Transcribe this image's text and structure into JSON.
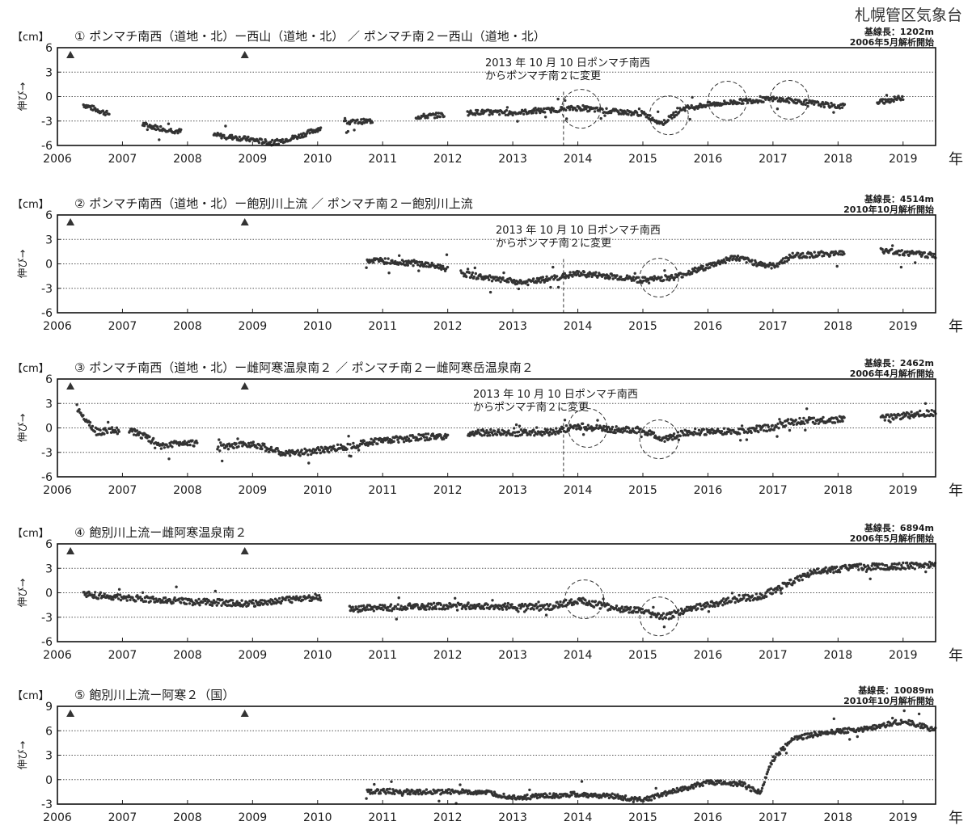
{
  "agency": "札幌管区気象台",
  "year_unit": "年",
  "y_unit": "【cm】",
  "y_axis_label": "伸び→",
  "chart_data": [
    {
      "type": "scatter",
      "title": "① ポンマチ南西（道地・北）ー西山（道地・北） ／ ポンマチ南２ー西山（道地・北）",
      "baseline_length": "基線長：1202m",
      "analysis_start": "2006年5月解析開始",
      "annotation": [
        "2013 年 10 月 10 日ポンマチ南西",
        "からポンマチ南２に変更"
      ],
      "change_date": 2013.78,
      "event_markers": [
        2006.2,
        2008.88
      ],
      "circles": [
        [
          2014.05,
          -1.5
        ],
        [
          2015.4,
          -2.3
        ],
        [
          2016.3,
          -0.5
        ],
        [
          2017.25,
          -0.4
        ]
      ],
      "xlim": [
        2006,
        2019.5
      ],
      "xticks": [
        "2006",
        "2007",
        "2008",
        "2009",
        "2010",
        "2011",
        "2012",
        "2013",
        "2014",
        "2015",
        "2016",
        "2017",
        "2018",
        "2019"
      ],
      "ylim": [
        -6,
        6
      ],
      "yticks": [
        "6",
        "3",
        "0",
        "-3",
        "-6"
      ],
      "grid": "y",
      "trend": [
        [
          2006.4,
          -1.0
        ],
        [
          2006.7,
          -1.9
        ],
        [
          2007.4,
          -3.6
        ],
        [
          2007.8,
          -4.2
        ],
        [
          2008.5,
          -4.8
        ],
        [
          2009.0,
          -5.3
        ],
        [
          2009.3,
          -5.7
        ],
        [
          2009.7,
          -4.9
        ],
        [
          2010.0,
          -4.0
        ],
        [
          2010.4,
          -3.2
        ],
        [
          2010.8,
          -3.0
        ],
        [
          2011.5,
          -2.5
        ],
        [
          2012.0,
          -2.2
        ],
        [
          2012.5,
          -1.9
        ],
        [
          2013.0,
          -2.0
        ],
        [
          2013.5,
          -1.7
        ],
        [
          2014.0,
          -1.4
        ],
        [
          2014.5,
          -1.8
        ],
        [
          2015.0,
          -2.1
        ],
        [
          2015.3,
          -3.3
        ],
        [
          2015.6,
          -1.5
        ],
        [
          2016.0,
          -1.0
        ],
        [
          2016.5,
          -0.6
        ],
        [
          2017.0,
          -0.3
        ],
        [
          2017.5,
          -0.7
        ],
        [
          2018.0,
          -1.2
        ],
        [
          2018.7,
          -0.6
        ],
        [
          2019.0,
          -0.1
        ]
      ],
      "gaps": [
        [
          2006.8,
          2007.3
        ],
        [
          2007.9,
          2008.4
        ],
        [
          2010.05,
          2010.4
        ],
        [
          2010.85,
          2011.5
        ],
        [
          2011.95,
          2012.3
        ],
        [
          2018.1,
          2018.6
        ]
      ],
      "noise": 0.3
    },
    {
      "type": "scatter",
      "title": "② ポンマチ南西（道地・北）ー飽別川上流 ／ ポンマチ南２ー飽別川上流",
      "baseline_length": "基線長：4514m",
      "analysis_start": "2010年10月解析開始",
      "annotation": [
        "2013 年 10 月 10 日ポンマチ南西",
        "からポンマチ南２に変更"
      ],
      "change_date": 2013.78,
      "event_markers": [
        2006.2,
        2008.88
      ],
      "circles": [
        [
          2015.25,
          -1.7
        ]
      ],
      "xlim": [
        2006,
        2019.5
      ],
      "xticks": [
        "2006",
        "2007",
        "2008",
        "2009",
        "2010",
        "2011",
        "2012",
        "2013",
        "2014",
        "2015",
        "2016",
        "2017",
        "2018",
        "2019"
      ],
      "ylim": [
        -6,
        6
      ],
      "yticks": [
        "6",
        "3",
        "0",
        "-3",
        "-6"
      ],
      "grid": "y",
      "trend": [
        [
          2010.75,
          0.5
        ],
        [
          2011.5,
          0.1
        ],
        [
          2011.9,
          -0.4
        ],
        [
          2012.3,
          -1.3
        ],
        [
          2012.8,
          -2.0
        ],
        [
          2013.2,
          -2.3
        ],
        [
          2013.6,
          -1.8
        ],
        [
          2014.0,
          -1.2
        ],
        [
          2014.5,
          -1.5
        ],
        [
          2015.0,
          -2.0
        ],
        [
          2015.5,
          -1.6
        ],
        [
          2016.0,
          -0.3
        ],
        [
          2016.4,
          0.8
        ],
        [
          2016.8,
          0.0
        ],
        [
          2017.0,
          -0.3
        ],
        [
          2017.3,
          1.0
        ],
        [
          2018.0,
          1.3
        ],
        [
          2018.7,
          1.6
        ],
        [
          2019.5,
          1.0
        ]
      ],
      "gaps": [
        [
          2012.0,
          2012.2
        ],
        [
          2018.1,
          2018.65
        ]
      ],
      "noise": 0.35
    },
    {
      "type": "scatter",
      "title": "③ ポンマチ南西（道地・北）ー雌阿寒温泉南２ ／ ポンマチ南２ー雌阿寒岳温泉南２",
      "baseline_length": "基線長：2462m",
      "analysis_start": "2006年4月解析開始",
      "annotation": [
        "2013 年 10 月 10 日ポンマチ南西",
        "からポンマチ南２に変更"
      ],
      "change_date": 2013.78,
      "event_markers": [
        2006.2,
        2008.88
      ],
      "circles": [
        [
          2014.15,
          0.0
        ],
        [
          2015.25,
          -1.4
        ]
      ],
      "xlim": [
        2006,
        2019.5
      ],
      "xticks": [
        "2006",
        "2007",
        "2008",
        "2009",
        "2010",
        "2011",
        "2012",
        "2013",
        "2014",
        "2015",
        "2016",
        "2017",
        "2018",
        "2019"
      ],
      "ylim": [
        -6,
        6
      ],
      "yticks": [
        "6",
        "3",
        "0",
        "-3",
        "-6"
      ],
      "grid": "y",
      "trend": [
        [
          2006.3,
          2.5
        ],
        [
          2006.6,
          -0.5
        ],
        [
          2006.9,
          -0.3
        ],
        [
          2007.2,
          -0.5
        ],
        [
          2007.6,
          -2.2
        ],
        [
          2008.0,
          -1.7
        ],
        [
          2008.5,
          -2.5
        ],
        [
          2009.0,
          -1.9
        ],
        [
          2009.5,
          -3.2
        ],
        [
          2010.0,
          -2.8
        ],
        [
          2010.5,
          -2.2
        ],
        [
          2010.9,
          -1.6
        ],
        [
          2011.5,
          -1.2
        ],
        [
          2012.0,
          -1.0
        ],
        [
          2012.5,
          -0.6
        ],
        [
          2013.0,
          -0.6
        ],
        [
          2013.6,
          -0.5
        ],
        [
          2014.0,
          0.2
        ],
        [
          2014.5,
          -0.2
        ],
        [
          2015.0,
          -0.3
        ],
        [
          2015.3,
          -1.4
        ],
        [
          2015.7,
          -0.5
        ],
        [
          2016.5,
          -0.4
        ],
        [
          2017.0,
          0.1
        ],
        [
          2017.3,
          0.8
        ],
        [
          2018.0,
          1.0
        ],
        [
          2018.8,
          1.3
        ],
        [
          2019.5,
          1.9
        ]
      ],
      "gaps": [
        [
          2006.95,
          2007.1
        ],
        [
          2008.15,
          2008.45
        ],
        [
          2012.0,
          2012.3
        ],
        [
          2018.1,
          2018.65
        ]
      ],
      "noise": 0.4
    },
    {
      "type": "scatter",
      "title": "④ 飽別川上流ー雌阿寒温泉南２",
      "baseline_length": "基線長：6894m",
      "analysis_start": "2006年5月解析開始",
      "annotation": [],
      "change_date": null,
      "event_markers": [
        2006.2,
        2008.88
      ],
      "circles": [
        [
          2014.1,
          -0.8
        ],
        [
          2015.25,
          -2.9
        ]
      ],
      "xlim": [
        2006,
        2019.5
      ],
      "xticks": [
        "2006",
        "2007",
        "2008",
        "2009",
        "2010",
        "2011",
        "2012",
        "2013",
        "2014",
        "2015",
        "2016",
        "2017",
        "2018",
        "2019"
      ],
      "ylim": [
        -6,
        6
      ],
      "yticks": [
        "6",
        "3",
        "0",
        "-3",
        "-6"
      ],
      "grid": "y",
      "trend": [
        [
          2006.4,
          -0.2
        ],
        [
          2007.0,
          -0.6
        ],
        [
          2008.0,
          -1.1
        ],
        [
          2009.0,
          -1.3
        ],
        [
          2010.0,
          -0.5
        ],
        [
          2010.5,
          -2.0
        ],
        [
          2011.5,
          -1.7
        ],
        [
          2012.5,
          -1.6
        ],
        [
          2013.5,
          -1.8
        ],
        [
          2014.0,
          -1.0
        ],
        [
          2014.5,
          -1.8
        ],
        [
          2015.0,
          -2.3
        ],
        [
          2015.3,
          -3.1
        ],
        [
          2015.8,
          -1.8
        ],
        [
          2016.5,
          -0.7
        ],
        [
          2016.8,
          -0.5
        ],
        [
          2017.2,
          1.0
        ],
        [
          2017.6,
          2.5
        ],
        [
          2018.2,
          3.1
        ],
        [
          2019.5,
          3.4
        ]
      ],
      "gaps": [
        [
          2010.05,
          2010.48
        ]
      ],
      "noise": 0.4
    },
    {
      "type": "scatter",
      "title": "⑤ 飽別川上流ー阿寒２（国）",
      "baseline_length": "基線長：10089m",
      "analysis_start": "2010年10月解析開始",
      "annotation": [],
      "change_date": null,
      "event_markers": [
        2006.2,
        2008.88
      ],
      "circles": [],
      "xlim": [
        2006,
        2019.5
      ],
      "xticks": [
        "2006",
        "2007",
        "2008",
        "2009",
        "2010",
        "2011",
        "2012",
        "2013",
        "2014",
        "2015",
        "2016",
        "2017",
        "2018",
        "2019"
      ],
      "ylim": [
        -3,
        9
      ],
      "yticks": [
        "9",
        "6",
        "3",
        "0",
        "-3"
      ],
      "grid": "y",
      "trend": [
        [
          2010.75,
          -1.4
        ],
        [
          2011.5,
          -1.5
        ],
        [
          2012.5,
          -1.5
        ],
        [
          2013.0,
          -2.2
        ],
        [
          2013.5,
          -2.0
        ],
        [
          2014.0,
          -1.8
        ],
        [
          2014.5,
          -2.0
        ],
        [
          2015.0,
          -2.5
        ],
        [
          2015.5,
          -1.4
        ],
        [
          2016.0,
          -0.3
        ],
        [
          2016.5,
          -0.5
        ],
        [
          2016.8,
          -1.6
        ],
        [
          2017.0,
          2.5
        ],
        [
          2017.3,
          5.0
        ],
        [
          2017.8,
          5.8
        ],
        [
          2018.5,
          6.3
        ],
        [
          2019.0,
          7.2
        ],
        [
          2019.5,
          6.1
        ]
      ],
      "gaps": [],
      "noise": 0.3
    }
  ]
}
